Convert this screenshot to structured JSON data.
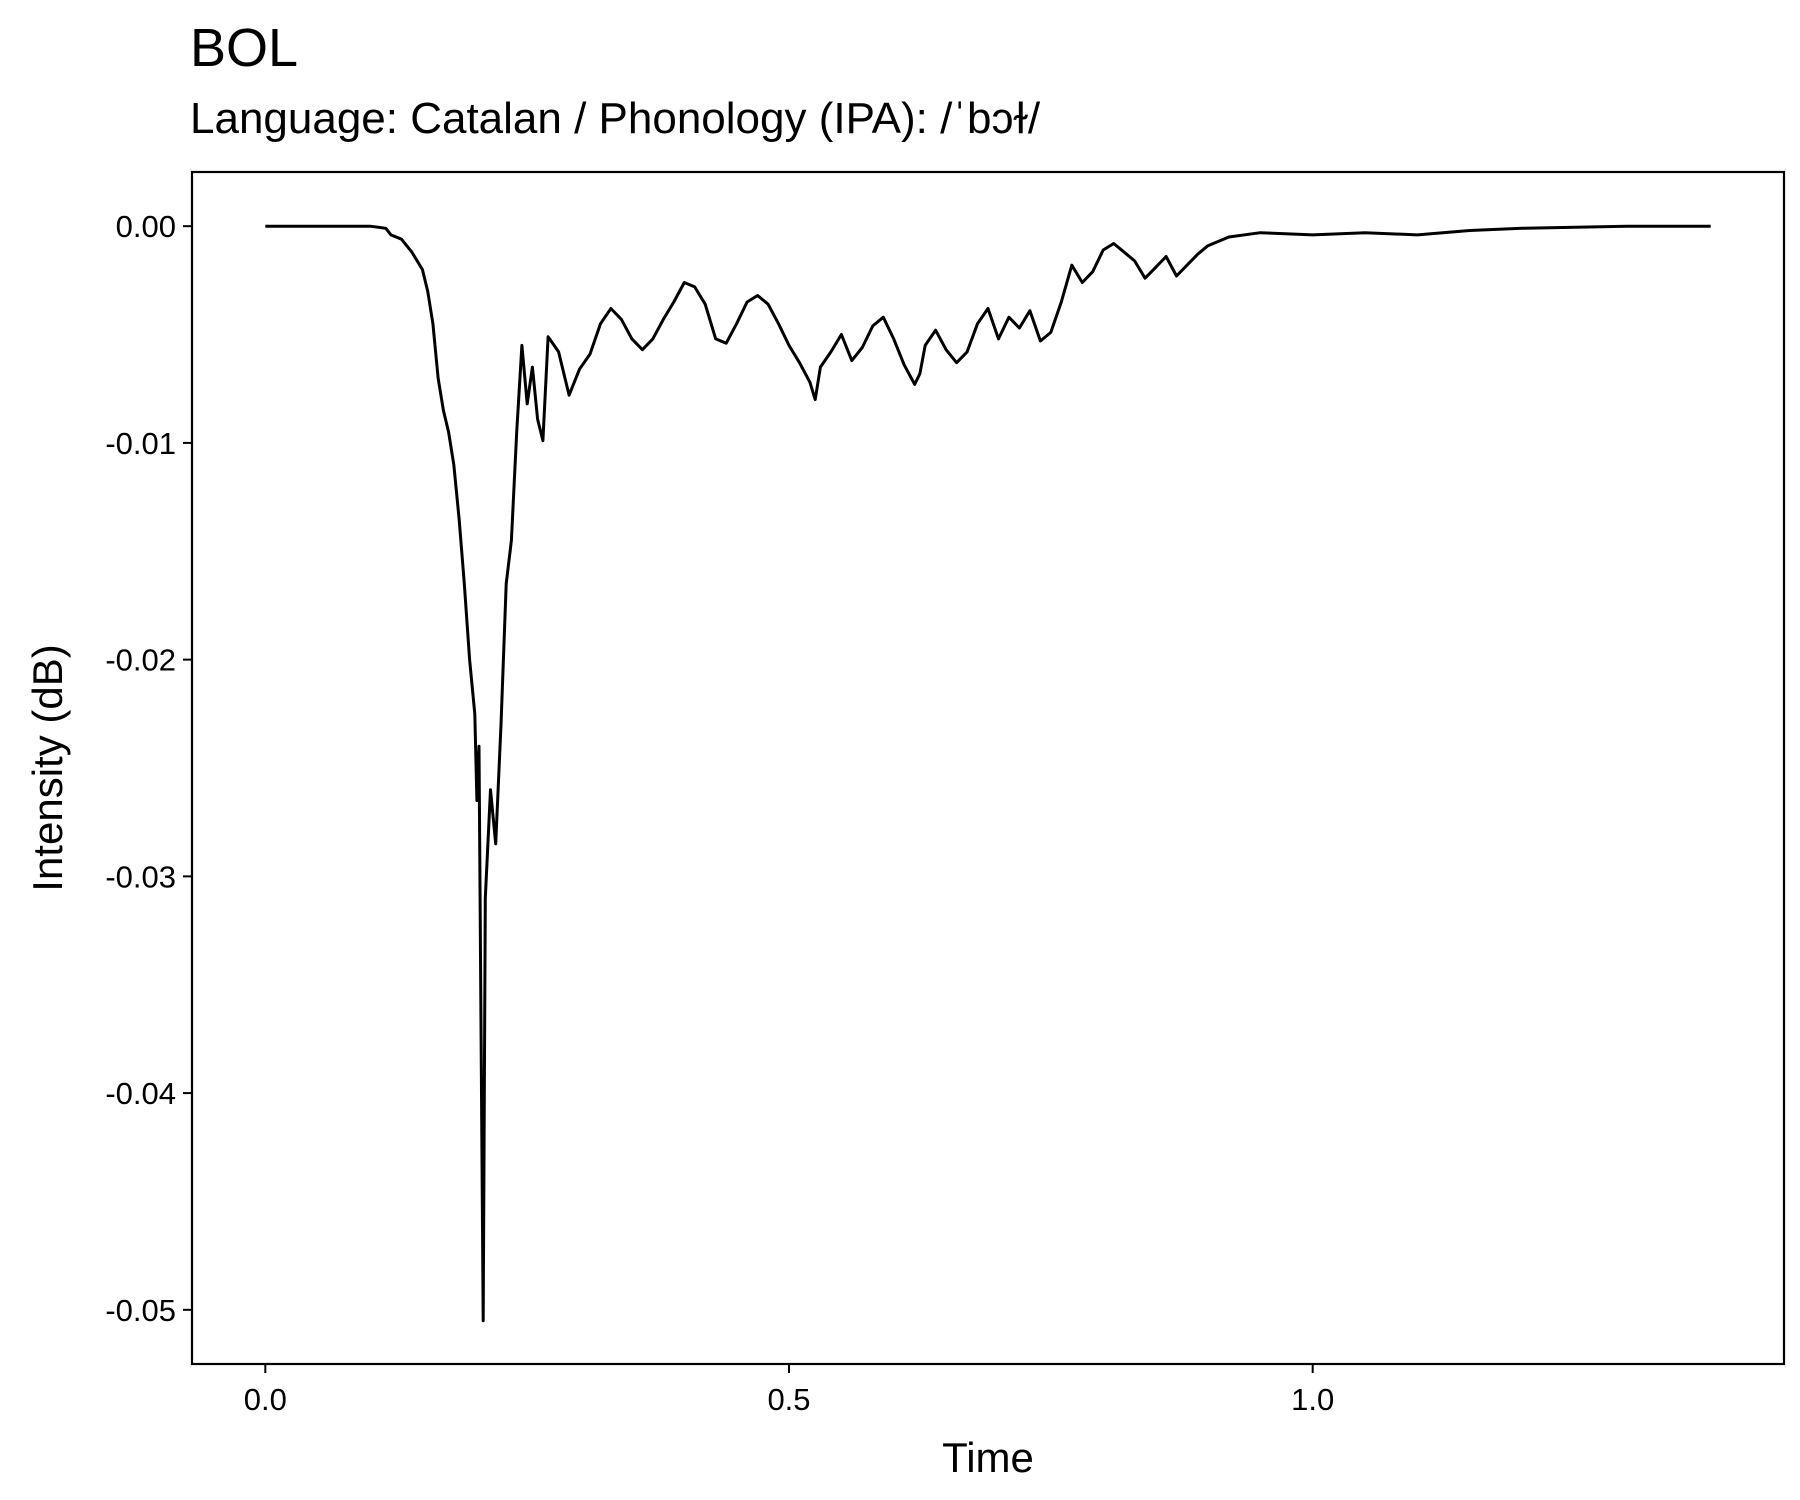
{
  "chart_data": {
    "type": "line",
    "title": "BOL",
    "subtitle": "Language: Catalan / Phonology (IPA): /ˈbɔɫ/",
    "xlabel": "Time",
    "ylabel": "Intensity (dB)",
    "xlim": [
      -0.07,
      1.45
    ],
    "ylim": [
      -0.0525,
      0.0025
    ],
    "x_ticks": [
      {
        "value": 0.0,
        "label": "0.0"
      },
      {
        "value": 0.5,
        "label": "0.5"
      },
      {
        "value": 1.0,
        "label": "1.0"
      }
    ],
    "y_ticks": [
      {
        "value": 0.0,
        "label": "0.00"
      },
      {
        "value": -0.01,
        "label": "-0.01"
      },
      {
        "value": -0.02,
        "label": "-0.02"
      },
      {
        "value": -0.03,
        "label": "-0.03"
      },
      {
        "value": -0.04,
        "label": "-0.04"
      },
      {
        "value": -0.05,
        "label": "-0.05"
      }
    ],
    "grid": false,
    "legend": "none",
    "series": [
      {
        "name": "intensity",
        "color": "#000000",
        "x": [
          0.0,
          0.05,
          0.1,
          0.115,
          0.12,
          0.13,
          0.14,
          0.15,
          0.155,
          0.16,
          0.165,
          0.17,
          0.175,
          0.18,
          0.185,
          0.19,
          0.195,
          0.2,
          0.202,
          0.204,
          0.206,
          0.208,
          0.21,
          0.215,
          0.22,
          0.225,
          0.23,
          0.235,
          0.24,
          0.245,
          0.25,
          0.255,
          0.26,
          0.265,
          0.27,
          0.28,
          0.29,
          0.3,
          0.31,
          0.32,
          0.33,
          0.34,
          0.35,
          0.36,
          0.37,
          0.38,
          0.39,
          0.4,
          0.41,
          0.42,
          0.43,
          0.44,
          0.45,
          0.46,
          0.47,
          0.48,
          0.49,
          0.5,
          0.51,
          0.52,
          0.525,
          0.53,
          0.54,
          0.55,
          0.56,
          0.57,
          0.58,
          0.59,
          0.6,
          0.61,
          0.62,
          0.625,
          0.63,
          0.64,
          0.65,
          0.66,
          0.67,
          0.68,
          0.69,
          0.7,
          0.71,
          0.72,
          0.73,
          0.74,
          0.75,
          0.76,
          0.77,
          0.78,
          0.79,
          0.8,
          0.81,
          0.82,
          0.83,
          0.84,
          0.85,
          0.86,
          0.87,
          0.88,
          0.89,
          0.9,
          0.92,
          0.95,
          1.0,
          1.05,
          1.1,
          1.15,
          1.2,
          1.3,
          1.38
        ],
        "y": [
          0.0,
          0.0,
          0.0,
          -0.0001,
          -0.0004,
          -0.0006,
          -0.0012,
          -0.002,
          -0.003,
          -0.0045,
          -0.007,
          -0.0085,
          -0.0095,
          -0.011,
          -0.0135,
          -0.0165,
          -0.02,
          -0.0225,
          -0.0265,
          -0.024,
          -0.0375,
          -0.0505,
          -0.031,
          -0.026,
          -0.0285,
          -0.023,
          -0.0165,
          -0.0145,
          -0.0095,
          -0.0055,
          -0.0082,
          -0.0065,
          -0.0089,
          -0.0099,
          -0.0051,
          -0.0058,
          -0.0078,
          -0.0066,
          -0.0059,
          -0.0045,
          -0.0038,
          -0.0043,
          -0.0052,
          -0.0057,
          -0.0052,
          -0.0043,
          -0.0035,
          -0.0026,
          -0.0028,
          -0.0036,
          -0.0052,
          -0.0054,
          -0.0045,
          -0.0035,
          -0.0032,
          -0.0036,
          -0.0045,
          -0.0055,
          -0.0063,
          -0.0072,
          -0.008,
          -0.0065,
          -0.0058,
          -0.005,
          -0.0062,
          -0.0056,
          -0.0046,
          -0.0042,
          -0.0052,
          -0.0064,
          -0.0073,
          -0.0068,
          -0.0055,
          -0.0048,
          -0.0057,
          -0.0063,
          -0.0058,
          -0.0045,
          -0.0038,
          -0.0052,
          -0.0042,
          -0.0047,
          -0.0039,
          -0.0053,
          -0.0049,
          -0.0035,
          -0.0018,
          -0.0026,
          -0.0021,
          -0.0011,
          -0.0008,
          -0.0012,
          -0.0016,
          -0.0024,
          -0.0019,
          -0.0014,
          -0.0023,
          -0.0018,
          -0.0013,
          -0.0009,
          -0.0005,
          -0.0003,
          -0.0004,
          -0.0003,
          -0.0004,
          -0.0002,
          -0.0001,
          0.0,
          0.0
        ]
      }
    ]
  }
}
